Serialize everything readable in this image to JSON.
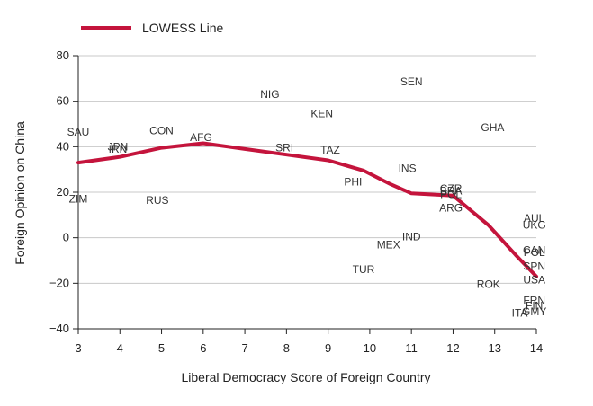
{
  "chart_data": {
    "type": "scatter",
    "title": "",
    "xlabel": "Liberal Democracy Score of Foreign Country",
    "ylabel": "Foreign Opinion on China",
    "xlim": [
      3,
      14
    ],
    "ylim": [
      -40,
      80
    ],
    "xticks": [
      "3",
      "4",
      "5",
      "6",
      "7",
      "8",
      "9",
      "10",
      "11",
      "12",
      "13",
      "14"
    ],
    "yticks": [
      "80",
      "60",
      "40",
      "20",
      "0",
      "−20",
      "−40"
    ],
    "grid": "horizontal",
    "legend_position": "top-left",
    "colors": {
      "lowess": "#c4143c",
      "points": "#333333",
      "grid": "#c8c8c8"
    },
    "points": [
      {
        "label": "SAU",
        "x": 3.0,
        "y": 46.5
      },
      {
        "label": "ZIM",
        "x": 3.0,
        "y": 17.0
      },
      {
        "label": "JPN",
        "x": 3.95,
        "y": 40.0
      },
      {
        "label": "IRN",
        "x": 3.95,
        "y": 39.0
      },
      {
        "label": "CON",
        "x": 5.0,
        "y": 47.0
      },
      {
        "label": "RUS",
        "x": 4.9,
        "y": 16.5
      },
      {
        "label": "AFG",
        "x": 5.95,
        "y": 44.0
      },
      {
        "label": "NIG",
        "x": 7.6,
        "y": 63.0
      },
      {
        "label": "SRI",
        "x": 7.95,
        "y": 39.5
      },
      {
        "label": "KEN",
        "x": 8.85,
        "y": 54.5
      },
      {
        "label": "TAZ",
        "x": 9.05,
        "y": 38.5
      },
      {
        "label": "PHI",
        "x": 9.6,
        "y": 24.5
      },
      {
        "label": "SEN",
        "x": 11.0,
        "y": 68.5
      },
      {
        "label": "INS",
        "x": 10.9,
        "y": 30.5
      },
      {
        "label": "MEX",
        "x": 10.45,
        "y": -3.0
      },
      {
        "label": "IND",
        "x": 11.0,
        "y": 0.5
      },
      {
        "label": "TUR",
        "x": 9.85,
        "y": -14.0
      },
      {
        "label": "GHA",
        "x": 12.95,
        "y": 48.5
      },
      {
        "label": "BRA",
        "x": 11.95,
        "y": 20.5
      },
      {
        "label": "CZR",
        "x": 11.95,
        "y": 21.5
      },
      {
        "label": "POL",
        "x": 11.95,
        "y": 19.0
      },
      {
        "label": "ARG",
        "x": 11.95,
        "y": 13.0
      },
      {
        "label": "AUL",
        "x": 13.95,
        "y": 8.5
      },
      {
        "label": "UKG",
        "x": 13.95,
        "y": 5.5
      },
      {
        "label": "CAN",
        "x": 13.95,
        "y": -5.5
      },
      {
        "label": "POL",
        "x": 13.95,
        "y": -6.5
      },
      {
        "label": "SPN",
        "x": 13.95,
        "y": -12.5
      },
      {
        "label": "USA",
        "x": 13.95,
        "y": -18.5
      },
      {
        "label": "ROK",
        "x": 12.85,
        "y": -20.5
      },
      {
        "label": "FRN",
        "x": 13.95,
        "y": -27.5
      },
      {
        "label": "FIN",
        "x": 13.95,
        "y": -30.0
      },
      {
        "label": "GMY",
        "x": 13.95,
        "y": -32.5
      },
      {
        "label": "ITA",
        "x": 13.6,
        "y": -33.0
      }
    ],
    "series": [
      {
        "name": "LOWESS Line",
        "type": "line",
        "x": [
          3,
          4,
          5,
          6,
          7,
          8,
          9,
          9.85,
          10.5,
          11,
          12,
          12.85,
          13.5,
          14
        ],
        "y": [
          33,
          35.5,
          39.5,
          41.5,
          39,
          36.5,
          34,
          29.5,
          23.5,
          19.5,
          18.5,
          5.5,
          -7.5,
          -17
        ]
      }
    ]
  }
}
